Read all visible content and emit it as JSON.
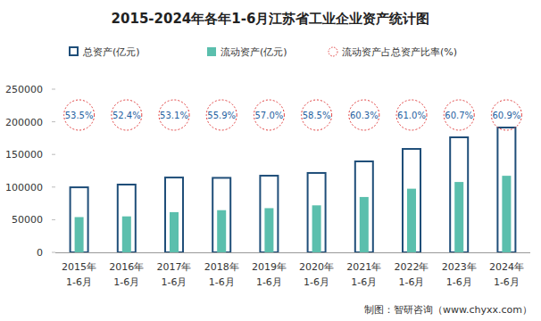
{
  "chart_data": {
    "type": "bar",
    "title": "2015-2024年各年1-6月江苏省工业企业资产统计图",
    "categories": [
      "2015年1-6月",
      "2016年1-6月",
      "2017年1-6月",
      "2018年1-6月",
      "2019年1-6月",
      "2020年1-6月",
      "2021年1-6月",
      "2022年1-6月",
      "2023年1-6月",
      "2024年1-6月"
    ],
    "series": [
      {
        "name": "总资产(亿元)",
        "type": "bar",
        "color": "#1f4e79",
        "values": [
          101000,
          105200,
          116000,
          115500,
          118800,
          123000,
          140700,
          159800,
          177600,
          192600
        ]
      },
      {
        "name": "流动资产(亿元)",
        "type": "bar",
        "color": "#5bbfad",
        "values": [
          54000,
          55100,
          61600,
          64600,
          67700,
          72000,
          84800,
          97500,
          107800,
          117300
        ]
      },
      {
        "name": "流动资产占总资产比率(%)",
        "type": "annotation",
        "color": "#e03c3c",
        "values": [
          53.5,
          52.4,
          53.1,
          55.9,
          57.0,
          58.5,
          60.3,
          61.0,
          60.7,
          60.9
        ],
        "value_labels": [
          "53.5%",
          "52.4%",
          "53.1%",
          "55.9%",
          "57.0%",
          "58.5%",
          "60.3%",
          "61.0%",
          "60.7%",
          "60.9%"
        ]
      }
    ],
    "ylim": [
      0,
      250000
    ],
    "yticks": [
      0,
      50000,
      100000,
      150000,
      200000,
      250000
    ],
    "grid": false,
    "legend": "top",
    "data_labels": true,
    "source": "制图：智研咨询（www.chyxx.com）"
  }
}
